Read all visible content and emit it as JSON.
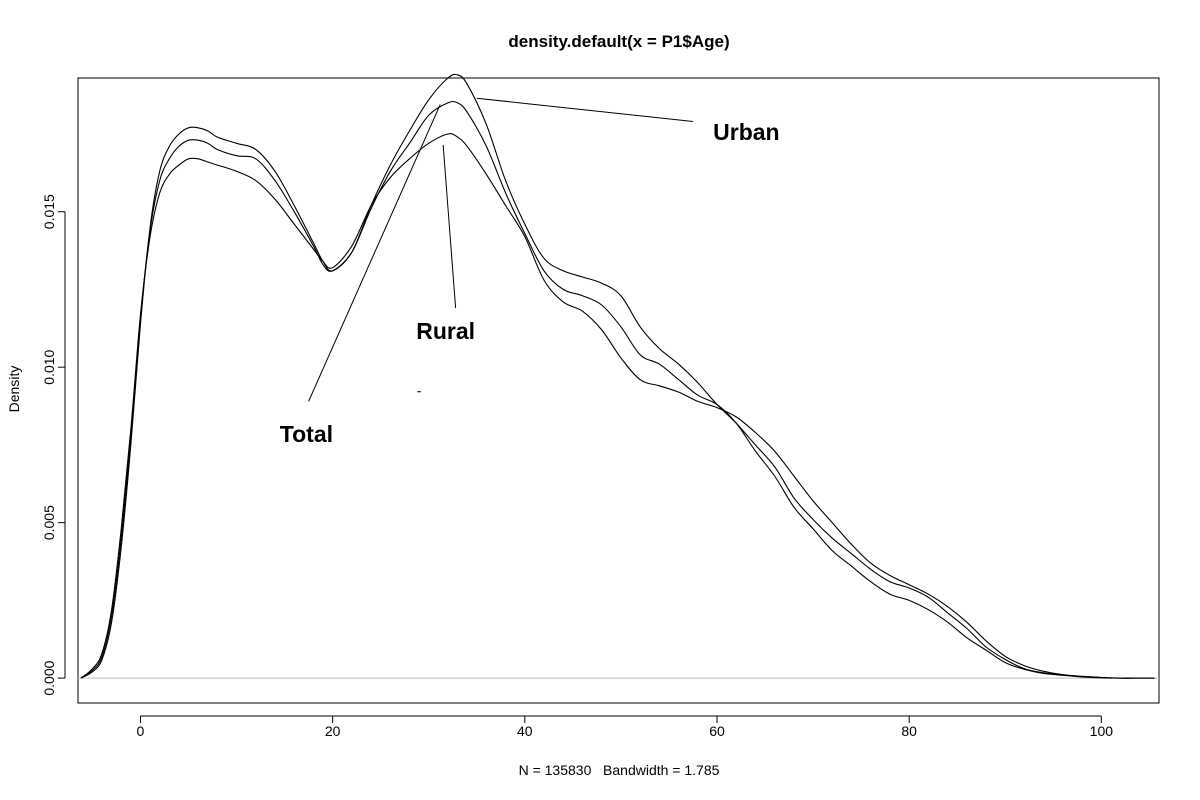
{
  "chart_data": {
    "type": "line",
    "title": "density.default(x = P1$Age)",
    "xlabel": "N = 135830   Bandwidth = 1.785",
    "ylabel": "Density",
    "xlim": [
      -6.5,
      106
    ],
    "ylim": [
      -0.0008,
      0.0193
    ],
    "x_ticks": [
      0,
      20,
      40,
      60,
      80,
      100
    ],
    "x_tick_labels": [
      "0",
      "20",
      "40",
      "60",
      "80",
      "100"
    ],
    "y_ticks": [
      0.0,
      0.005,
      0.01,
      0.015
    ],
    "y_tick_labels": [
      "0.000",
      "0.005",
      "0.010",
      "0.015"
    ],
    "grid": false,
    "zero_line": true,
    "curve_color": "#000000",
    "zero_line_color": "#bdbdbd",
    "series": [
      {
        "x": [
          -6.2,
          -5,
          -4,
          -3,
          -2,
          -1,
          0,
          1,
          2,
          3,
          4,
          5,
          6,
          7,
          8,
          10,
          12,
          14,
          16,
          18,
          19,
          20,
          22,
          24,
          26,
          28,
          30,
          32,
          33,
          34,
          36,
          38,
          40,
          42,
          44,
          46,
          48,
          50,
          52,
          54,
          56,
          58,
          60,
          62,
          64,
          66,
          68,
          70,
          72,
          74,
          76,
          78,
          80,
          82,
          84,
          86,
          88,
          90,
          92,
          94,
          96,
          98,
          100,
          102,
          104,
          105.5
        ],
        "values": [
          0.0,
          0.0002,
          0.0006,
          0.0018,
          0.0042,
          0.0075,
          0.0114,
          0.0145,
          0.0163,
          0.0171,
          0.0175,
          0.0177,
          0.0177,
          0.0176,
          0.0174,
          0.0172,
          0.017,
          0.0163,
          0.0152,
          0.014,
          0.0134,
          0.0131,
          0.0137,
          0.0152,
          0.0165,
          0.0176,
          0.0186,
          0.0193,
          0.0194,
          0.0191,
          0.0178,
          0.016,
          0.0146,
          0.0135,
          0.0131,
          0.0129,
          0.0127,
          0.0123,
          0.0113,
          0.0106,
          0.0101,
          0.0095,
          0.0088,
          0.0082,
          0.0075,
          0.0068,
          0.0058,
          0.0051,
          0.0045,
          0.004,
          0.0035,
          0.0031,
          0.0029,
          0.0026,
          0.0021,
          0.0016,
          0.001,
          0.0006,
          0.0003,
          0.00017,
          0.0001,
          5e-05,
          2e-05,
          0.0,
          0.0,
          0.0
        ]
      },
      {
        "x": [
          -6.2,
          -5,
          -4,
          -3,
          -2,
          -1,
          0,
          1,
          2,
          3,
          4,
          5,
          6,
          7,
          8,
          10,
          12,
          14,
          16,
          18,
          19,
          20,
          22,
          24,
          26,
          28,
          30,
          32,
          33,
          34,
          36,
          38,
          40,
          42,
          44,
          46,
          48,
          50,
          52,
          54,
          56,
          58,
          60,
          62,
          64,
          66,
          68,
          70,
          72,
          74,
          76,
          78,
          80,
          82,
          84,
          86,
          88,
          90,
          92,
          94,
          96,
          98,
          100,
          102,
          104,
          105.5
        ],
        "values": [
          0.0,
          0.00025,
          0.0007,
          0.002,
          0.0045,
          0.0078,
          0.0116,
          0.0144,
          0.016,
          0.0167,
          0.0171,
          0.0173,
          0.0173,
          0.0172,
          0.017,
          0.0168,
          0.0167,
          0.016,
          0.015,
          0.0139,
          0.0133,
          0.0131,
          0.0137,
          0.0151,
          0.0163,
          0.0172,
          0.0181,
          0.0185,
          0.0185,
          0.0182,
          0.0171,
          0.0156,
          0.0143,
          0.0131,
          0.0125,
          0.0123,
          0.012,
          0.0113,
          0.0104,
          0.0101,
          0.0096,
          0.0091,
          0.0088,
          0.0082,
          0.0073,
          0.0065,
          0.0055,
          0.0048,
          0.0041,
          0.0036,
          0.0031,
          0.0027,
          0.0025,
          0.0022,
          0.0018,
          0.0013,
          0.0009,
          0.0005,
          0.00028,
          0.00015,
          9e-05,
          4e-05,
          1e-05,
          0.0,
          0.0,
          0.0
        ]
      },
      {
        "x": [
          -6.2,
          -5,
          -4,
          -3,
          -2,
          -1,
          0,
          1,
          2,
          3,
          4,
          5,
          6,
          7,
          8,
          10,
          12,
          14,
          16,
          18,
          19,
          20,
          22,
          24,
          26,
          28,
          30,
          32,
          33,
          34,
          36,
          38,
          40,
          42,
          44,
          46,
          48,
          50,
          52,
          54,
          56,
          58,
          60,
          62,
          64,
          66,
          68,
          70,
          72,
          74,
          76,
          78,
          80,
          82,
          84,
          86,
          88,
          90,
          92,
          94,
          96,
          98,
          100,
          102,
          104,
          105.5
        ],
        "values": [
          0.0,
          0.0003,
          0.0008,
          0.0022,
          0.0048,
          0.008,
          0.0117,
          0.0142,
          0.0156,
          0.0162,
          0.0165,
          0.0167,
          0.0167,
          0.0166,
          0.0165,
          0.0163,
          0.016,
          0.0154,
          0.0146,
          0.0138,
          0.0134,
          0.0132,
          0.0139,
          0.0152,
          0.0161,
          0.0167,
          0.0172,
          0.0175,
          0.0174,
          0.0171,
          0.0162,
          0.0152,
          0.0142,
          0.0128,
          0.0121,
          0.0118,
          0.0112,
          0.0103,
          0.0096,
          0.0094,
          0.0092,
          0.0089,
          0.0087,
          0.0084,
          0.0079,
          0.0073,
          0.0065,
          0.0057,
          0.005,
          0.0043,
          0.0037,
          0.0033,
          0.003,
          0.0027,
          0.0023,
          0.0018,
          0.0012,
          0.0007,
          0.0004,
          0.00022,
          0.00011,
          6e-05,
          2e-05,
          0.0,
          0.0,
          0.0
        ]
      }
    ],
    "annotations": [
      {
        "text": "Urban",
        "label_xy": [
          59.6,
          0.0173
        ],
        "line_from": [
          57.5,
          0.0179
        ],
        "line_to": [
          35,
          0.01865
        ]
      },
      {
        "text": "Rural",
        "label_xy": [
          28.7,
          0.0109
        ],
        "line_from": [
          32.8,
          0.0119
        ],
        "line_to": [
          31.5,
          0.01715
        ]
      },
      {
        "text": "Total",
        "label_xy": [
          14.5,
          0.0076
        ],
        "line_from": [
          17.5,
          0.0089
        ],
        "line_to": [
          31.2,
          0.01845
        ]
      }
    ],
    "stray_mark": [
      [
        28.8,
        0.00921
      ],
      [
        29.2,
        0.00921
      ]
    ]
  }
}
